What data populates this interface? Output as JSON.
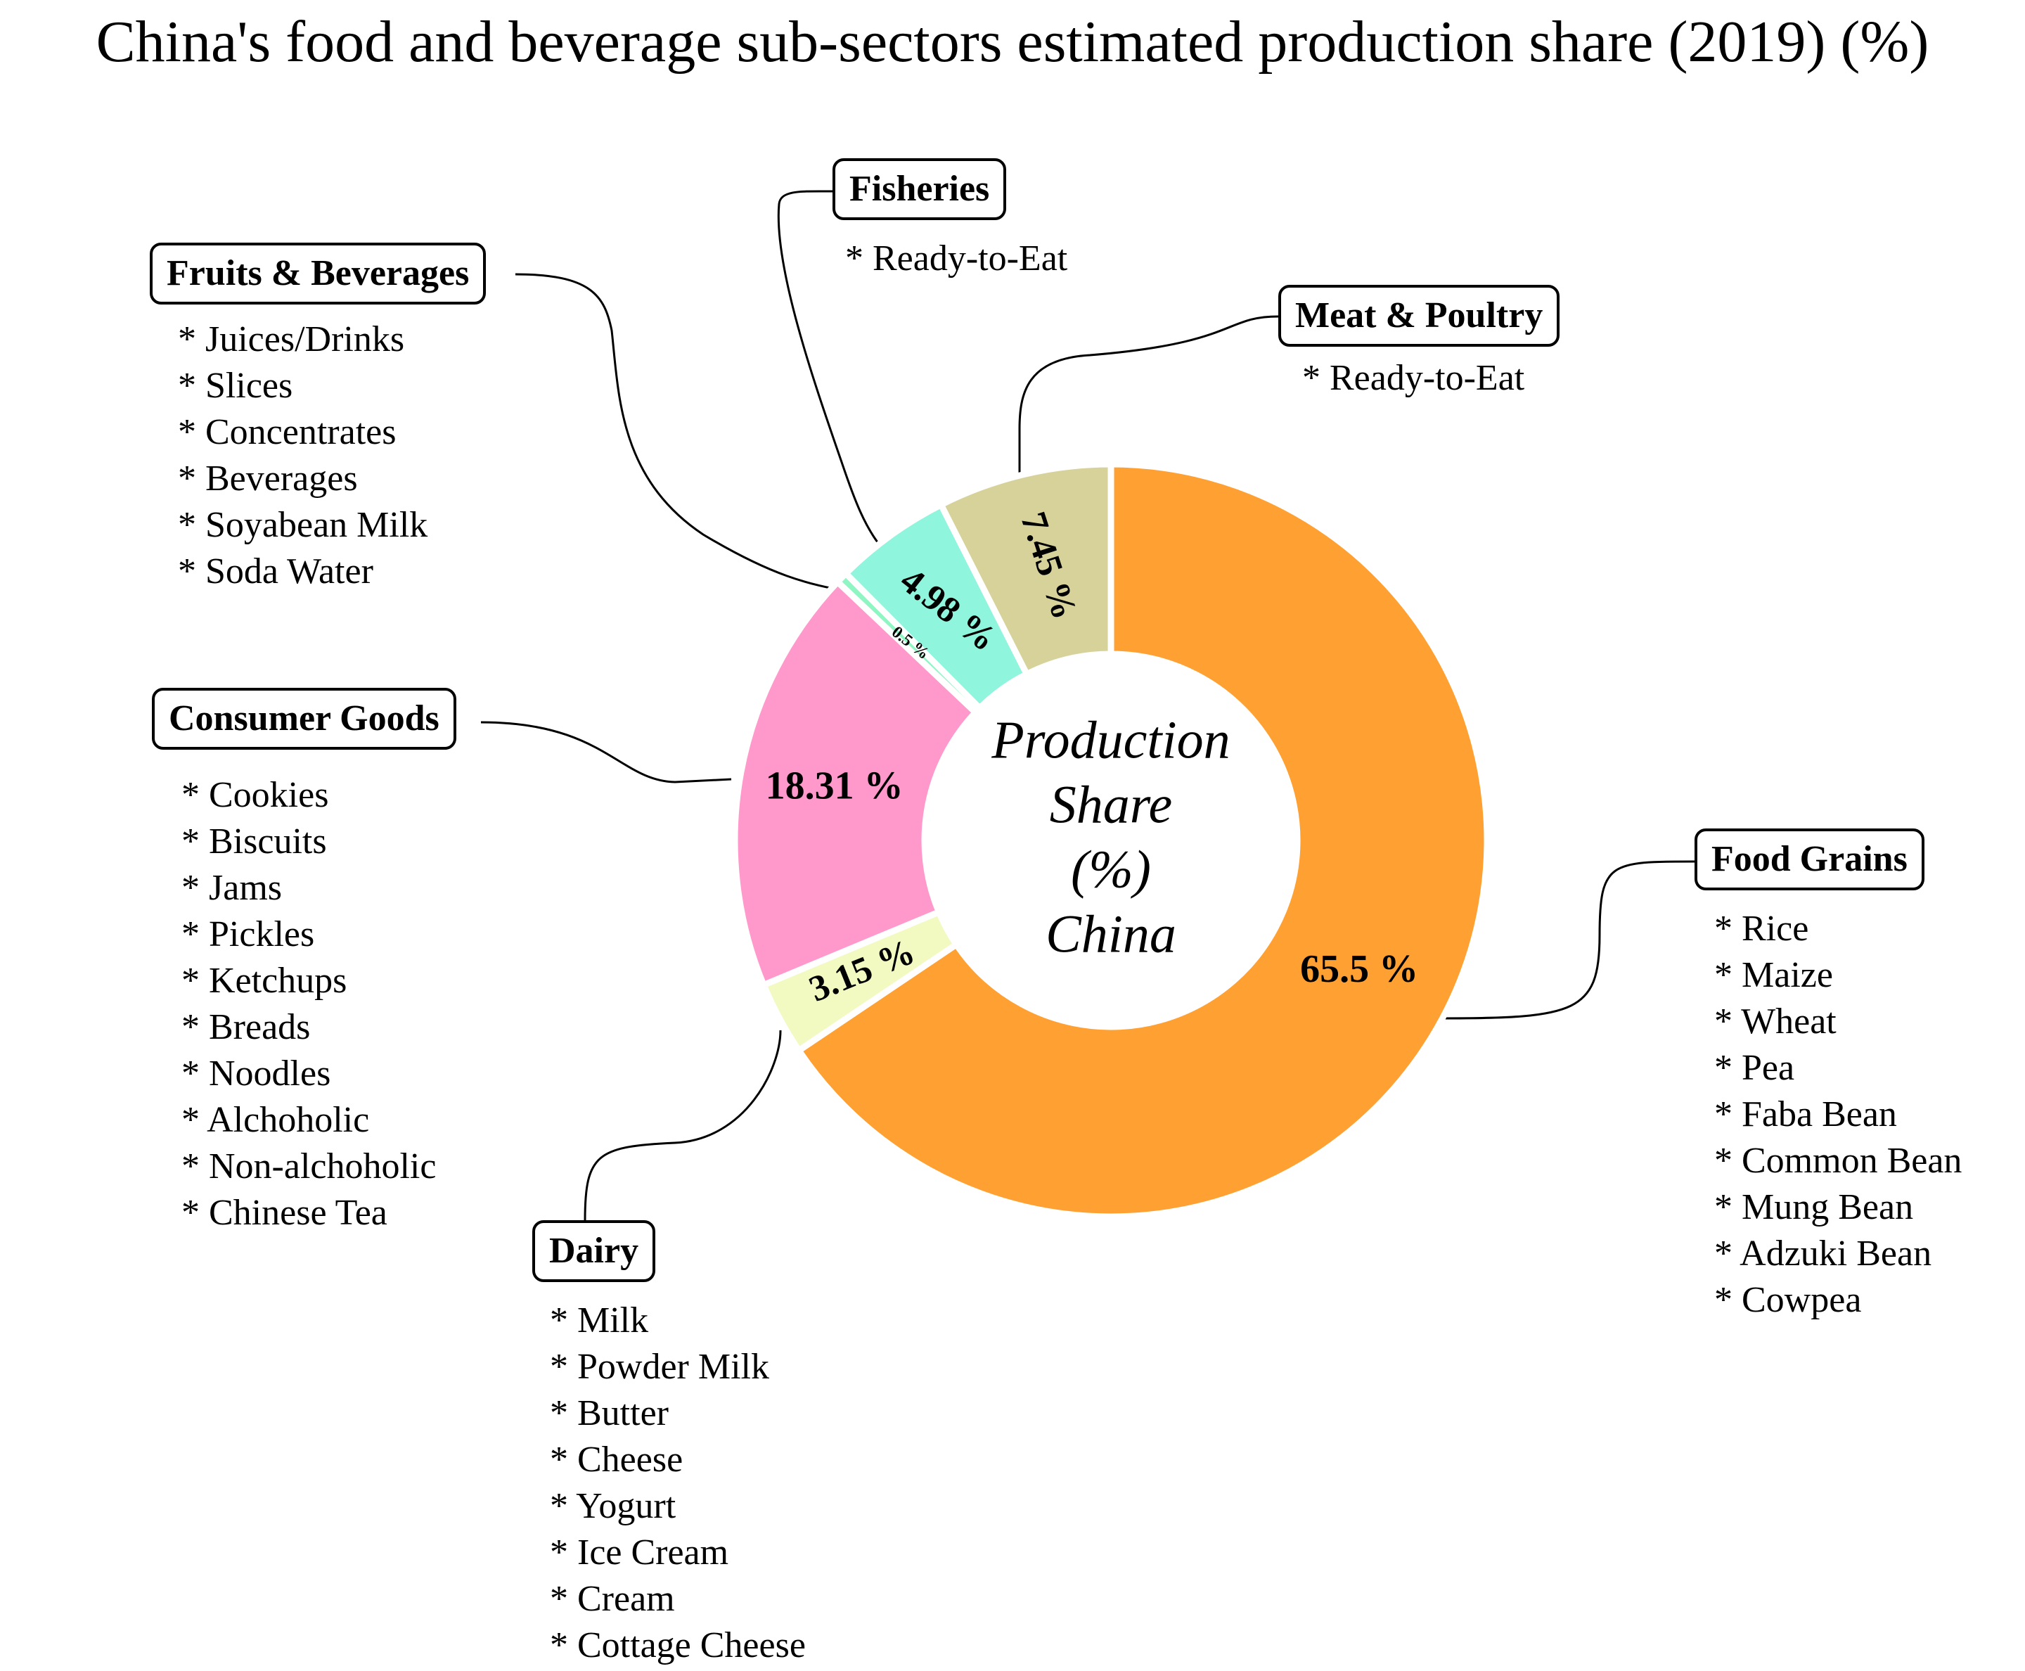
{
  "chart_data": {
    "type": "pie",
    "variant": "donut",
    "title": "China's food and beverage sub-sectors estimated production share (2019) (%)",
    "center_label": [
      "Production",
      "Share",
      "(%)",
      "China"
    ],
    "slices": [
      {
        "name": "Food Grains",
        "value": 65.5,
        "label": "65.5 %",
        "color": "#FFA033"
      },
      {
        "name": "Dairy",
        "value": 3.15,
        "label": "3.15 %",
        "color": "#F2FAC2"
      },
      {
        "name": "Consumer Goods",
        "value": 18.31,
        "label": "18.31 %",
        "color": "#FF99CC"
      },
      {
        "name": "Fruits & Beverages",
        "value": 0.5,
        "label": "0.5 %",
        "color": "#8FF5C2"
      },
      {
        "name": "Fisheries",
        "value": 4.98,
        "label": "4.98 %",
        "color": "#8FF5DC"
      },
      {
        "name": "Meat & Poultry",
        "value": 7.45,
        "label": "7.45 %",
        "color": "#D6D29A"
      }
    ],
    "categories": [
      {
        "name": "Food Grains",
        "items": [
          "Rice",
          "Maize",
          "Wheat",
          "Pea",
          "Faba Bean",
          "Common Bean",
          "Mung Bean",
          "Adzuki Bean",
          "Cowpea"
        ]
      },
      {
        "name": "Dairy",
        "items": [
          "Milk",
          "Powder Milk",
          "Butter",
          "Cheese",
          "Yogurt",
          "Ice Cream",
          "Cream",
          "Cottage Cheese"
        ]
      },
      {
        "name": "Consumer Goods",
        "items": [
          "Cookies",
          "Biscuits",
          "Jams",
          "Pickles",
          "Ketchups",
          "Breads",
          "Noodles",
          "Alchoholic",
          "Non-alchoholic",
          "Chinese Tea"
        ]
      },
      {
        "name": "Fruits & Beverages",
        "items": [
          "Juices/Drinks",
          "Slices",
          "Concentrates",
          "Beverages",
          "Soyabean Milk",
          "Soda Water"
        ]
      },
      {
        "name": "Fisheries",
        "items": [
          "Ready-to-Eat"
        ]
      },
      {
        "name": "Meat & Poultry",
        "items": [
          "Ready-to-Eat"
        ]
      }
    ]
  }
}
